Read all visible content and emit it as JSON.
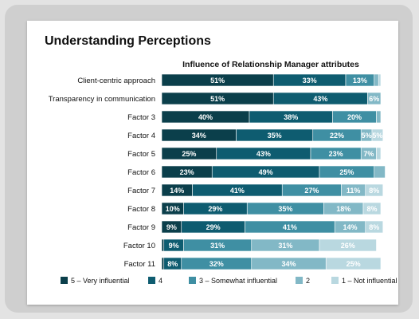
{
  "page": {
    "title": "Understanding Perceptions"
  },
  "chart_data": {
    "type": "bar",
    "orientation": "horizontal",
    "stacked": true,
    "title": "Influence of Relationship Manager attributes",
    "xlabel": "",
    "ylabel": "",
    "xlim": [
      0,
      100
    ],
    "legend_position": "bottom",
    "grid": false,
    "categories": [
      "Client-centric approach",
      "Transparency in communication",
      "Factor 3",
      "Factor 4",
      "Factor 5",
      "Factor 6",
      "Factor 7",
      "Factor 8",
      "Factor 9",
      "Factor 10",
      "Factor 11"
    ],
    "series": [
      {
        "name": "5 – Very influential",
        "color": "#0b3f4b",
        "values": [
          51,
          51,
          40,
          34,
          25,
          23,
          14,
          10,
          9,
          1,
          1
        ]
      },
      {
        "name": "4",
        "color": "#0e5c70",
        "values": [
          33,
          43,
          38,
          35,
          43,
          49,
          41,
          29,
          29,
          9,
          8
        ]
      },
      {
        "name": "3 – Somewhat influential",
        "color": "#3f8fa3",
        "values": [
          13,
          0,
          20,
          22,
          23,
          25,
          27,
          35,
          41,
          31,
          32
        ]
      },
      {
        "name": "2",
        "color": "#82b8c6",
        "values": [
          2,
          6,
          2,
          5,
          7,
          5,
          11,
          18,
          14,
          31,
          34
        ]
      },
      {
        "name": "1 – Not influential",
        "color": "#b9d8e0",
        "values": [
          1,
          0,
          0,
          5,
          2,
          0,
          8,
          8,
          8,
          26,
          25
        ]
      }
    ],
    "data_labels": [
      [
        "51%",
        "33%",
        "13%",
        "",
        ""
      ],
      [
        "51%",
        "43%",
        "",
        "6%",
        ""
      ],
      [
        "40%",
        "38%",
        "20%",
        "",
        ""
      ],
      [
        "34%",
        "35%",
        "22%",
        "5%",
        "5%"
      ],
      [
        "25%",
        "43%",
        "23%",
        "7%",
        ""
      ],
      [
        "23%",
        "49%",
        "25%",
        "",
        ""
      ],
      [
        "14%",
        "41%",
        "27%",
        "11%",
        "8%"
      ],
      [
        "10%",
        "29%",
        "35%",
        "18%",
        "8%"
      ],
      [
        "9%",
        "29%",
        "41%",
        "14%",
        "8%"
      ],
      [
        "",
        "9%",
        "31%",
        "31%",
        "26%"
      ],
      [
        "",
        "8%",
        "32%",
        "34%",
        "25%"
      ]
    ]
  }
}
